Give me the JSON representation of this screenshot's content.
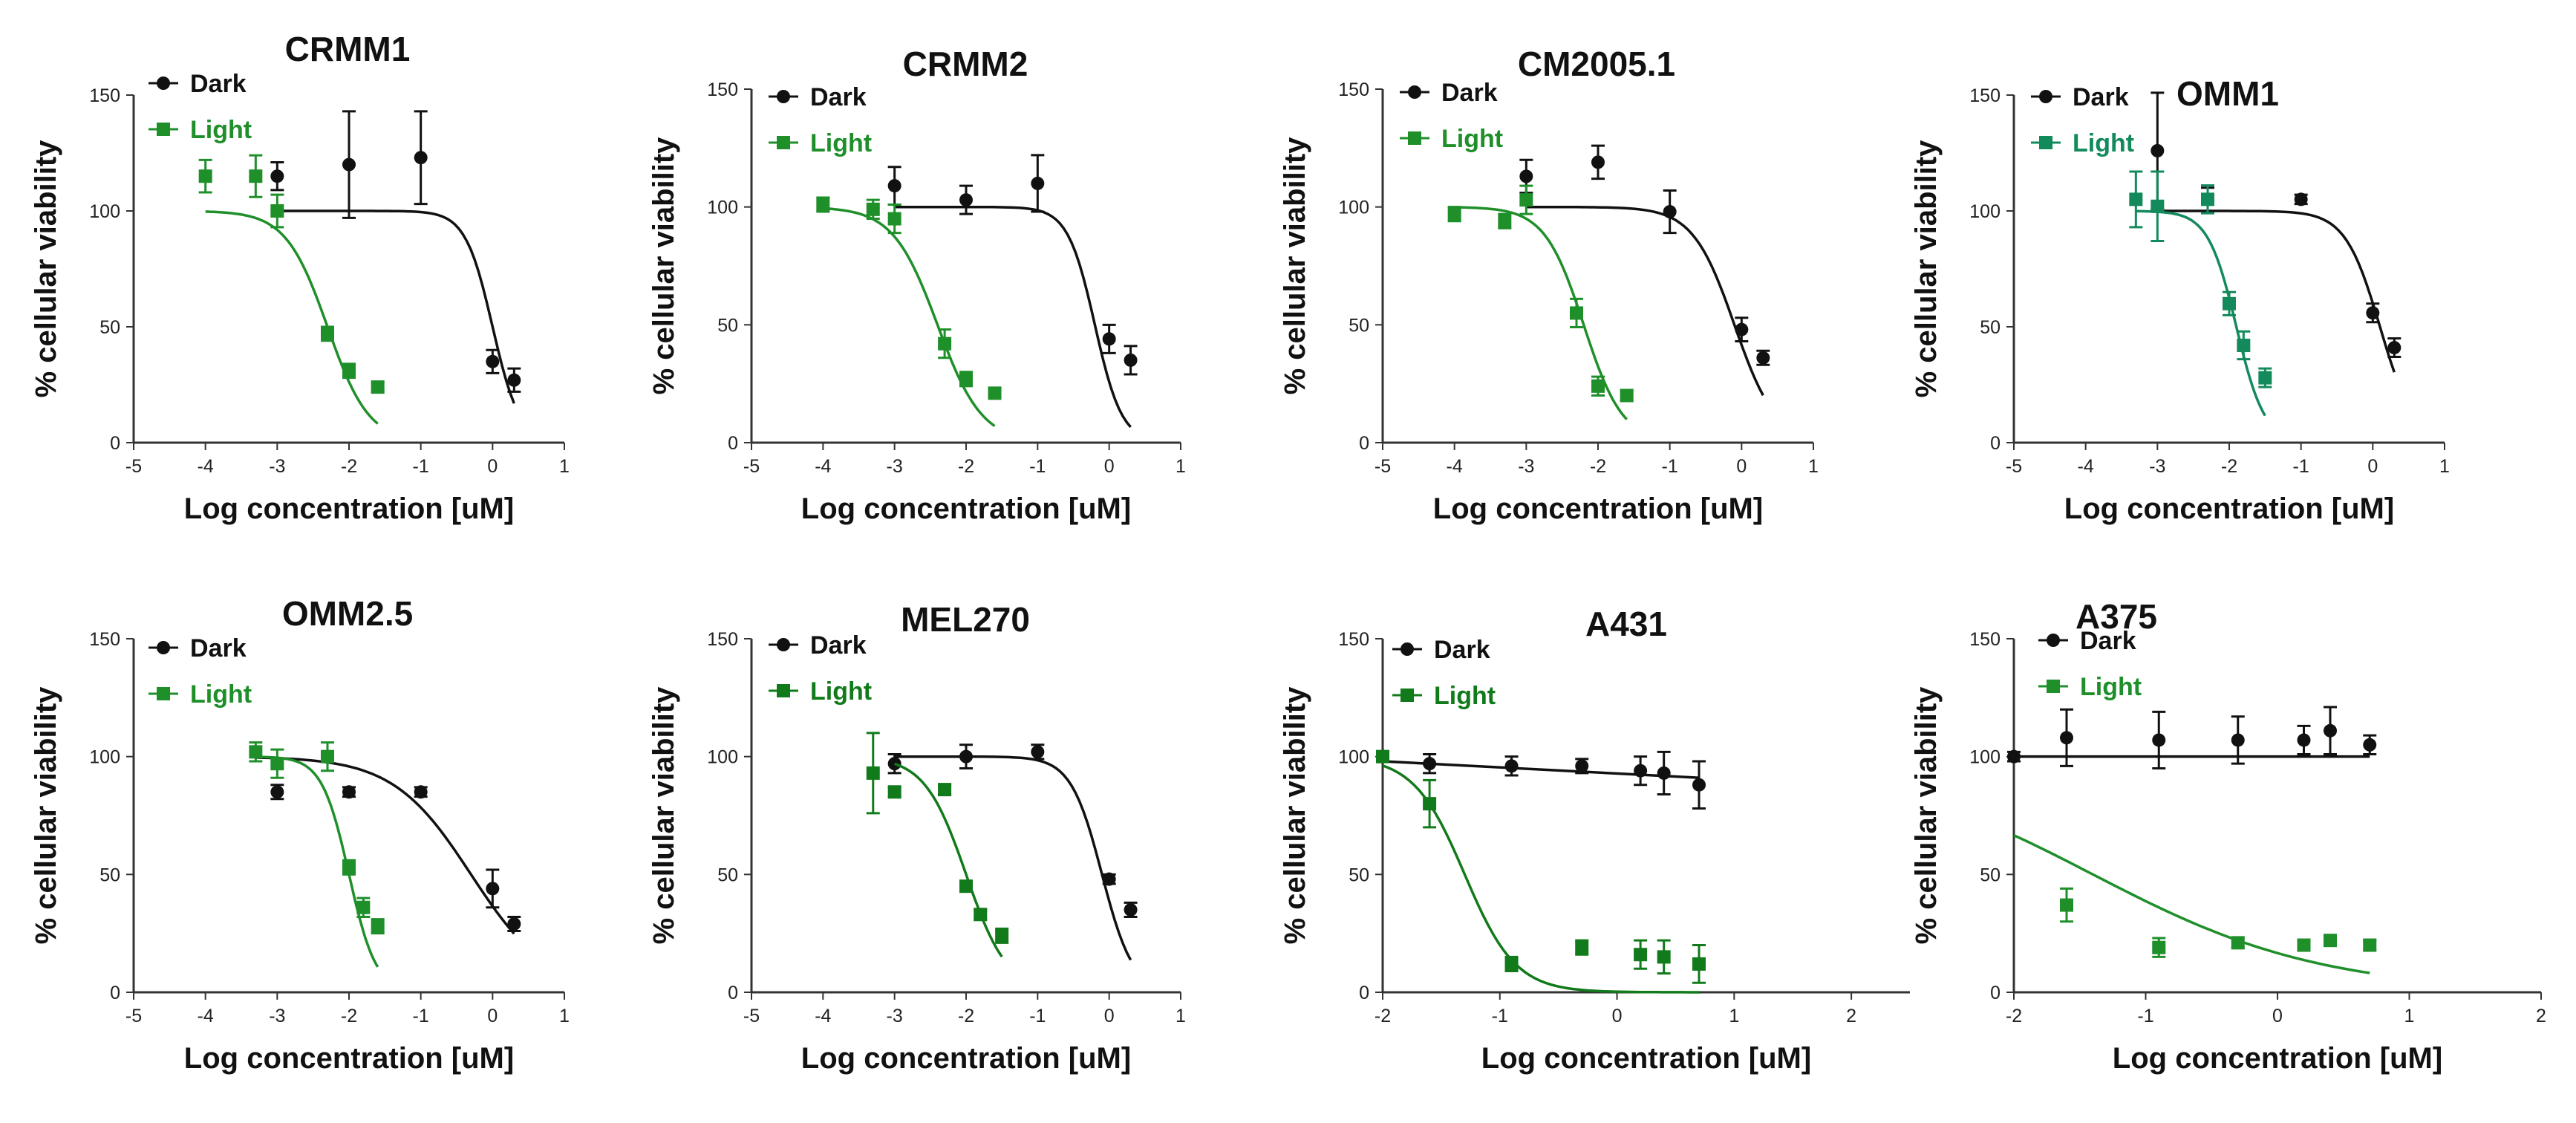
{
  "figure": {
    "description_free": true
  },
  "colors": {
    "dark": "#111111",
    "green_a": "#1f8f2a",
    "green_b": "#138a5c",
    "green_c": "#117a1a"
  },
  "chart_data": [
    {
      "type": "scatter",
      "title": "CRMM1",
      "xlabel": "Log concentration [uM]",
      "ylabel": "% cellular viability",
      "xlim": [
        -5,
        1
      ],
      "ylim": [
        0,
        150
      ],
      "xticks": [
        "-5",
        "-4",
        "-3",
        "-2",
        "-1",
        "0",
        "1"
      ],
      "yticks": [
        "0",
        "50",
        "100",
        "150"
      ],
      "green": "#1f8f2a",
      "series": [
        {
          "name": "Dark",
          "marker": "circle",
          "points": [
            [
              -3,
              115,
              6
            ],
            [
              -2,
              120,
              23
            ],
            [
              -1,
              123,
              20
            ],
            [
              0,
              35,
              5
            ],
            [
              0.3,
              27,
              5
            ]
          ],
          "fit": {
            "top": 100,
            "bottom": 0,
            "logic50": 0.0,
            "hill": 2.3,
            "x0": -3,
            "x1": 0.3
          }
        },
        {
          "name": "Light",
          "marker": "square",
          "points": [
            [
              -4,
              115,
              7
            ],
            [
              -3.3,
              115,
              9
            ],
            [
              -3,
              100,
              7
            ],
            [
              -2.3,
              47,
              3
            ],
            [
              -2,
              31,
              3
            ],
            [
              -1.6,
              24,
              2
            ]
          ],
          "fit": {
            "top": 100,
            "bottom": 0,
            "logic50": -2.3,
            "hill": 1.5,
            "x0": -4,
            "x1": -1.6
          }
        }
      ]
    },
    {
      "type": "scatter",
      "title": "CRMM2",
      "xlabel": "Log concentration [uM]",
      "ylabel": "% cellular viability",
      "xlim": [
        -5,
        1
      ],
      "ylim": [
        0,
        150
      ],
      "xticks": [
        "-5",
        "-4",
        "-3",
        "-2",
        "-1",
        "0",
        "1"
      ],
      "yticks": [
        "0",
        "50",
        "100",
        "150"
      ],
      "green": "#1f8f2a",
      "series": [
        {
          "name": "Dark",
          "marker": "circle",
          "points": [
            [
              -3,
              109,
              8
            ],
            [
              -2,
              103,
              6
            ],
            [
              -1,
              110,
              12
            ],
            [
              0,
              44,
              6
            ],
            [
              0.3,
              35,
              6
            ]
          ],
          "fit": {
            "top": 100,
            "bottom": 0,
            "logic50": -0.2,
            "hill": 2.3,
            "x0": -3,
            "x1": 0.3
          }
        },
        {
          "name": "Light",
          "marker": "square",
          "points": [
            [
              -4,
              101,
              3
            ],
            [
              -3.3,
              99,
              4
            ],
            [
              -3,
              95,
              6
            ],
            [
              -2.3,
              42,
              6
            ],
            [
              -2,
              27,
              3
            ],
            [
              -1.6,
              21,
              2
            ]
          ],
          "fit": {
            "top": 100,
            "bottom": 0,
            "logic50": -2.4,
            "hill": 1.4,
            "x0": -4,
            "x1": -1.6
          }
        }
      ]
    },
    {
      "type": "scatter",
      "title": "CM2005.1",
      "xlabel": "Log concentration [uM]",
      "ylabel": "% cellular viability",
      "xlim": [
        -5,
        1
      ],
      "ylim": [
        0,
        150
      ],
      "xticks": [
        "-5",
        "-4",
        "-3",
        "-2",
        "-1",
        "0",
        "1"
      ],
      "yticks": [
        "0",
        "50",
        "100",
        "150"
      ],
      "green": "#1f8f2a",
      "series": [
        {
          "name": "Dark",
          "marker": "circle",
          "points": [
            [
              -3,
              113,
              7
            ],
            [
              -2,
              119,
              7
            ],
            [
              -1,
              98,
              9
            ],
            [
              0,
              48,
              5
            ],
            [
              0.3,
              36,
              3
            ]
          ],
          "fit": {
            "top": 100,
            "bottom": 0,
            "logic50": -0.1,
            "hill": 1.5,
            "x0": -3,
            "x1": 0.3
          }
        },
        {
          "name": "Light",
          "marker": "square",
          "points": [
            [
              -4,
              97,
              3
            ],
            [
              -3.3,
              94,
              3
            ],
            [
              -3,
              103,
              6
            ],
            [
              -2.3,
              55,
              6
            ],
            [
              -2,
              24,
              4
            ],
            [
              -1.6,
              20,
              2
            ]
          ],
          "fit": {
            "top": 100,
            "bottom": 0,
            "logic50": -2.2,
            "hill": 1.6,
            "x0": -4,
            "x1": -1.6
          }
        }
      ]
    },
    {
      "type": "scatter",
      "title": "OMM1",
      "xlabel": "Log concentration [uM]",
      "ylabel": "% cellular viability",
      "xlim": [
        -5,
        1
      ],
      "ylim": [
        0,
        150
      ],
      "xticks": [
        "-5",
        "-4",
        "-3",
        "-2",
        "-1",
        "0",
        "1"
      ],
      "yticks": [
        "0",
        "50",
        "100",
        "150"
      ],
      "green": "#138a5c",
      "series": [
        {
          "name": "Dark",
          "marker": "circle",
          "points": [
            [
              -3,
              126,
              25
            ],
            [
              -2.3,
              105,
              5
            ],
            [
              -1,
              105,
              2
            ],
            [
              0,
              56,
              4
            ],
            [
              0.3,
              41,
              4
            ]
          ],
          "fit": {
            "top": 100,
            "bottom": 0,
            "logic50": 0.1,
            "hill": 1.8,
            "x0": -3,
            "x1": 0.3
          }
        },
        {
          "name": "Light",
          "marker": "square",
          "points": [
            [
              -3.3,
              105,
              12
            ],
            [
              -3,
              102,
              15
            ],
            [
              -2.3,
              105,
              6
            ],
            [
              -2,
              60,
              5
            ],
            [
              -1.8,
              42,
              6
            ],
            [
              -1.5,
              28,
              4
            ]
          ],
          "fit": {
            "top": 100,
            "bottom": 0,
            "logic50": -1.9,
            "hill": 2.2,
            "x0": -3.3,
            "x1": -1.5
          }
        }
      ]
    },
    {
      "type": "scatter",
      "title": "OMM2.5",
      "xlabel": "Log concentration [uM]",
      "ylabel": "% cellular viability",
      "xlim": [
        -5,
        1
      ],
      "ylim": [
        0,
        150
      ],
      "xticks": [
        "-5",
        "-4",
        "-3",
        "-2",
        "-1",
        "0",
        "1"
      ],
      "yticks": [
        "0",
        "50",
        "100",
        "150"
      ],
      "green": "#1f8f2a",
      "series": [
        {
          "name": "Dark",
          "marker": "circle",
          "points": [
            [
              -3,
              85,
              3
            ],
            [
              -2,
              85,
              2
            ],
            [
              -1,
              85,
              2
            ],
            [
              0,
              44,
              8
            ],
            [
              0.3,
              29,
              3
            ]
          ],
          "fit": {
            "top": 100,
            "bottom": 0,
            "logic50": -0.3,
            "hill": 0.8,
            "x0": -3.3,
            "x1": 0.3
          }
        },
        {
          "name": "Light",
          "marker": "square",
          "points": [
            [
              -3.3,
              102,
              4
            ],
            [
              -3,
              97,
              6
            ],
            [
              -2.3,
              100,
              6
            ],
            [
              -2,
              53,
              3
            ],
            [
              -1.8,
              36,
              4
            ],
            [
              -1.6,
              28,
              3
            ]
          ],
          "fit": {
            "top": 100,
            "bottom": 0,
            "logic50": -2.0,
            "hill": 2.3,
            "x0": -3.3,
            "x1": -1.6
          }
        }
      ]
    },
    {
      "type": "scatter",
      "title": "MEL270",
      "xlabel": "Log concentration [uM]",
      "ylabel": "% cellular viability",
      "xlim": [
        -5,
        1
      ],
      "ylim": [
        0,
        150
      ],
      "xticks": [
        "-5",
        "-4",
        "-3",
        "-2",
        "-1",
        "0",
        "1"
      ],
      "yticks": [
        "0",
        "50",
        "100",
        "150"
      ],
      "green": "#117a1a",
      "series": [
        {
          "name": "Dark",
          "marker": "circle",
          "points": [
            [
              -3,
              97,
              4
            ],
            [
              -2,
              100,
              5
            ],
            [
              -1,
              102,
              3
            ],
            [
              0,
              48,
              2
            ],
            [
              0.3,
              35,
              3
            ]
          ],
          "fit": {
            "top": 100,
            "bottom": 0,
            "logic50": -0.1,
            "hill": 2.0,
            "x0": -3,
            "x1": 0.3
          }
        },
        {
          "name": "Light",
          "marker": "square",
          "points": [
            [
              -3.3,
              93,
              17
            ],
            [
              -3,
              85,
              2
            ],
            [
              -2.3,
              86,
              2
            ],
            [
              -2,
              45,
              2
            ],
            [
              -1.8,
              33,
              2
            ],
            [
              -1.5,
              24,
              3
            ]
          ],
          "fit": {
            "top": 100,
            "bottom": 0,
            "logic50": -2.0,
            "hill": 1.5,
            "x0": -3,
            "x1": -1.5
          }
        }
      ]
    },
    {
      "type": "scatter",
      "title": "A431",
      "xlabel": "Log concentration [uM]",
      "ylabel": "% cellular viability",
      "xlim": [
        -2,
        2.5
      ],
      "ylim": [
        0,
        150
      ],
      "xticks": [
        "-2",
        "-1",
        "0",
        "1",
        "2"
      ],
      "yticks": [
        "0",
        "50",
        "100",
        "150"
      ],
      "green": "#117a1a",
      "series": [
        {
          "name": "Dark",
          "marker": "circle",
          "points": [
            [
              -2,
              100,
              2
            ],
            [
              -1.6,
              97,
              4
            ],
            [
              -0.9,
              96,
              4
            ],
            [
              -0.3,
              96,
              3
            ],
            [
              0.2,
              94,
              6
            ],
            [
              0.4,
              93,
              9
            ],
            [
              0.7,
              88,
              10
            ]
          ],
          "fit": {
            "linear": true,
            "y0": 98,
            "y1": 91,
            "x0": -2,
            "x1": 0.7
          }
        },
        {
          "name": "Light",
          "marker": "square",
          "points": [
            [
              -2,
              100,
              2
            ],
            [
              -1.6,
              80,
              10
            ],
            [
              -0.9,
              12,
              3
            ],
            [
              -0.3,
              19,
              3
            ],
            [
              0.2,
              16,
              6
            ],
            [
              0.4,
              15,
              7
            ],
            [
              0.7,
              12,
              8
            ]
          ],
          "fit": {
            "top": 100,
            "bottom": 0,
            "logic50": -1.3,
            "hill": 2.0,
            "x0": -2,
            "x1": 0.7
          }
        }
      ]
    },
    {
      "type": "scatter",
      "title": "A375",
      "xlabel": "Log concentration [uM]",
      "ylabel": "% cellular viability",
      "xlim": [
        -2,
        2
      ],
      "ylim": [
        0,
        150
      ],
      "xticks": [
        "-2",
        "-1",
        "0",
        "1",
        "2"
      ],
      "yticks": [
        "0",
        "50",
        "100",
        "150"
      ],
      "green": "#1f8f2a",
      "series": [
        {
          "name": "Dark",
          "marker": "circle",
          "points": [
            [
              -2,
              100,
              2
            ],
            [
              -1.6,
              108,
              12
            ],
            [
              -0.9,
              107,
              12
            ],
            [
              -0.3,
              107,
              10
            ],
            [
              0.2,
              107,
              6
            ],
            [
              0.4,
              111,
              10
            ],
            [
              0.7,
              105,
              4
            ]
          ],
          "fit": {
            "linear": true,
            "y0": 100,
            "y1": 100,
            "x0": -2,
            "x1": 0.7
          }
        },
        {
          "name": "Light",
          "marker": "square",
          "points": [
            [
              -1.6,
              37,
              7
            ],
            [
              -0.9,
              19,
              4
            ],
            [
              -0.3,
              21,
              2
            ],
            [
              0.2,
              20,
              2
            ],
            [
              0.4,
              22,
              2
            ],
            [
              0.7,
              20,
              2
            ]
          ],
          "fit": {
            "top": 100,
            "bottom": 0,
            "logic50": -1.4,
            "hill": 0.5,
            "x0": -2,
            "x1": 0.7
          }
        }
      ]
    }
  ]
}
